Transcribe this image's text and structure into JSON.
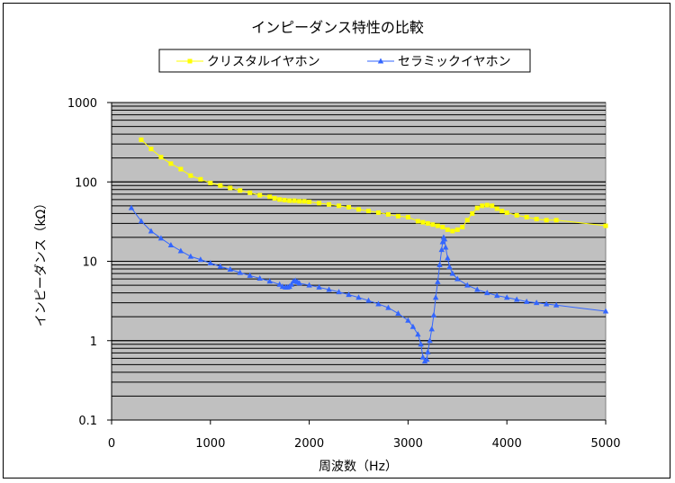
{
  "chart_data": {
    "type": "line",
    "title": "インピーダンス特性の比較",
    "xlabel": "周波数（Hz）",
    "ylabel": "インピーダンス（kΩ）",
    "xlim": [
      0,
      5000
    ],
    "ylim": [
      0.1,
      1000
    ],
    "yscale": "log",
    "grid": true,
    "legend_position": "top",
    "x_ticks": [
      "0",
      "1000",
      "2000",
      "3000",
      "4000",
      "5000"
    ],
    "y_ticks": [
      "1000",
      "100",
      "10",
      "1",
      "0.1"
    ],
    "series": [
      {
        "name": "クリスタルイヤホン",
        "color": "#ffff00",
        "marker": "square",
        "points": [
          [
            300,
            340
          ],
          [
            400,
            260
          ],
          [
            500,
            205
          ],
          [
            600,
            170
          ],
          [
            700,
            145
          ],
          [
            800,
            120
          ],
          [
            900,
            108
          ],
          [
            1000,
            97
          ],
          [
            1100,
            90
          ],
          [
            1200,
            84
          ],
          [
            1300,
            78
          ],
          [
            1400,
            73
          ],
          [
            1500,
            68
          ],
          [
            1600,
            65
          ],
          [
            1650,
            62
          ],
          [
            1700,
            60
          ],
          [
            1750,
            59
          ],
          [
            1800,
            58
          ],
          [
            1850,
            58
          ],
          [
            1900,
            57
          ],
          [
            1950,
            57
          ],
          [
            2000,
            56
          ],
          [
            2100,
            54
          ],
          [
            2200,
            52
          ],
          [
            2300,
            50
          ],
          [
            2400,
            48
          ],
          [
            2500,
            45
          ],
          [
            2600,
            43
          ],
          [
            2700,
            41
          ],
          [
            2800,
            39
          ],
          [
            2900,
            37
          ],
          [
            3000,
            36
          ],
          [
            3100,
            32
          ],
          [
            3150,
            31
          ],
          [
            3200,
            30
          ],
          [
            3250,
            29
          ],
          [
            3300,
            28
          ],
          [
            3350,
            27
          ],
          [
            3400,
            25
          ],
          [
            3450,
            24
          ],
          [
            3500,
            25
          ],
          [
            3550,
            27
          ],
          [
            3600,
            33
          ],
          [
            3650,
            40
          ],
          [
            3700,
            47
          ],
          [
            3750,
            50
          ],
          [
            3800,
            51
          ],
          [
            3850,
            50
          ],
          [
            3900,
            46
          ],
          [
            3950,
            43
          ],
          [
            4000,
            41
          ],
          [
            4100,
            38
          ],
          [
            4200,
            36
          ],
          [
            4300,
            34
          ],
          [
            4400,
            33
          ],
          [
            4500,
            33
          ],
          [
            5000,
            28
          ]
        ]
      },
      {
        "name": "セラミックイヤホン",
        "color": "#3366ff",
        "marker": "triangle",
        "points": [
          [
            200,
            47
          ],
          [
            300,
            32
          ],
          [
            400,
            24
          ],
          [
            500,
            19.5
          ],
          [
            600,
            16
          ],
          [
            700,
            13.5
          ],
          [
            800,
            11.5
          ],
          [
            900,
            10.5
          ],
          [
            1000,
            9.5
          ],
          [
            1100,
            8.6
          ],
          [
            1200,
            7.9
          ],
          [
            1300,
            7.2
          ],
          [
            1400,
            6.6
          ],
          [
            1500,
            6.1
          ],
          [
            1600,
            5.6
          ],
          [
            1700,
            5.1
          ],
          [
            1730,
            4.8
          ],
          [
            1760,
            4.7
          ],
          [
            1780,
            4.7
          ],
          [
            1800,
            4.8
          ],
          [
            1820,
            5.1
          ],
          [
            1840,
            5.6
          ],
          [
            1860,
            5.7
          ],
          [
            1880,
            5.5
          ],
          [
            1900,
            5.3
          ],
          [
            2000,
            5.0
          ],
          [
            2100,
            4.7
          ],
          [
            2200,
            4.4
          ],
          [
            2300,
            4.1
          ],
          [
            2400,
            3.8
          ],
          [
            2500,
            3.5
          ],
          [
            2600,
            3.2
          ],
          [
            2700,
            2.9
          ],
          [
            2800,
            2.6
          ],
          [
            2900,
            2.2
          ],
          [
            3000,
            1.8
          ],
          [
            3050,
            1.5
          ],
          [
            3100,
            1.2
          ],
          [
            3130,
            0.9
          ],
          [
            3150,
            0.62
          ],
          [
            3170,
            0.55
          ],
          [
            3190,
            0.58
          ],
          [
            3200,
            0.72
          ],
          [
            3220,
            1.0
          ],
          [
            3240,
            1.4
          ],
          [
            3260,
            2.1
          ],
          [
            3280,
            3.5
          ],
          [
            3300,
            5.5
          ],
          [
            3320,
            9
          ],
          [
            3340,
            14
          ],
          [
            3350,
            17.5
          ],
          [
            3360,
            20
          ],
          [
            3370,
            19
          ],
          [
            3380,
            15
          ],
          [
            3400,
            11
          ],
          [
            3420,
            8.5
          ],
          [
            3450,
            7
          ],
          [
            3500,
            6
          ],
          [
            3600,
            5.0
          ],
          [
            3700,
            4.4
          ],
          [
            3800,
            4.0
          ],
          [
            3900,
            3.7
          ],
          [
            4000,
            3.5
          ],
          [
            4100,
            3.3
          ],
          [
            4200,
            3.1
          ],
          [
            4300,
            3.0
          ],
          [
            4400,
            2.9
          ],
          [
            4500,
            2.8
          ],
          [
            5000,
            2.35
          ]
        ]
      }
    ]
  }
}
